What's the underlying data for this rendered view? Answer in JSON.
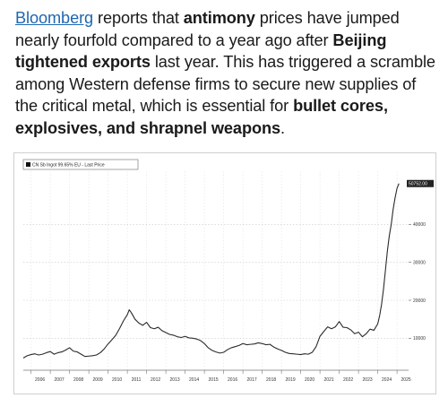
{
  "post": {
    "link": "Bloomberg",
    "t1": " reports that ",
    "b1": "antimony",
    "t2": " prices have jumped nearly fourfold compared to a year ago after ",
    "b2": "Beijing tightened exports",
    "t3": " last year. This has triggered a scramble among Western defense firms to secure new supplies of the critical metal, which is essential for ",
    "b3": "bullet cores, explosives, and shrapnel weapons",
    "t4": "."
  },
  "chart_data": {
    "type": "line",
    "legend": "CN Sb Ingot 99.65% EU - Last Price",
    "legend_position": "top-left",
    "last_price_label": "50752.00",
    "x_ticks": [
      "2006",
      "2007",
      "2008",
      "2009",
      "2010",
      "2011",
      "2012",
      "2013",
      "2014",
      "2015",
      "2016",
      "2017",
      "2018",
      "2019",
      "2020",
      "2021",
      "2022",
      "2023",
      "2024",
      "2025"
    ],
    "y_ticks": [
      10000,
      20000,
      30000,
      40000
    ],
    "y_tick_labels": [
      "10000",
      "20000",
      "30000",
      "40000"
    ],
    "xlim": [
      2005.6,
      2025.6
    ],
    "ylim": [
      3000,
      54000
    ],
    "grid": true,
    "line_color": "#2b2b2b",
    "series": [
      {
        "x": [
          2005.6,
          2005.8,
          2006.0,
          2006.2,
          2006.4,
          2006.6,
          2006.8,
          2007.0,
          2007.2,
          2007.4,
          2007.6,
          2007.8,
          2008.0,
          2008.2,
          2008.4,
          2008.6,
          2008.8,
          2009.0,
          2009.2,
          2009.4,
          2009.6,
          2009.8,
          2010.0,
          2010.2,
          2010.4,
          2010.6,
          2010.8,
          2011.0,
          2011.1,
          2011.2,
          2011.4,
          2011.6,
          2011.8,
          2012.0,
          2012.2,
          2012.4,
          2012.6,
          2012.8,
          2013.0,
          2013.2,
          2013.4,
          2013.6,
          2013.8,
          2014.0,
          2014.2,
          2014.4,
          2014.6,
          2014.8,
          2015.0,
          2015.2,
          2015.4,
          2015.6,
          2015.8,
          2016.0,
          2016.2,
          2016.4,
          2016.6,
          2016.8,
          2017.0,
          2017.2,
          2017.4,
          2017.6,
          2017.8,
          2018.0,
          2018.2,
          2018.4,
          2018.6,
          2018.8,
          2019.0,
          2019.2,
          2019.4,
          2019.6,
          2019.8,
          2020.0,
          2020.2,
          2020.4,
          2020.6,
          2020.8,
          2021.0,
          2021.2,
          2021.4,
          2021.6,
          2021.8,
          2022.0,
          2022.2,
          2022.4,
          2022.6,
          2022.8,
          2023.0,
          2023.2,
          2023.4,
          2023.6,
          2023.8,
          2024.0,
          2024.1,
          2024.2,
          2024.3,
          2024.4,
          2024.5,
          2024.6,
          2024.7,
          2024.8,
          2024.9,
          2025.0,
          2025.1
        ],
        "y": [
          4800,
          5400,
          5700,
          5900,
          5600,
          5800,
          6200,
          6500,
          5800,
          6200,
          6400,
          6900,
          7500,
          6600,
          6400,
          5800,
          5200,
          5300,
          5400,
          5600,
          6200,
          7200,
          8500,
          9600,
          10800,
          12600,
          14600,
          16200,
          17500,
          16800,
          15000,
          14000,
          13400,
          14200,
          12800,
          12500,
          12900,
          12000,
          11500,
          11000,
          10800,
          10400,
          10200,
          10500,
          10100,
          10000,
          9800,
          9400,
          8600,
          7500,
          6800,
          6400,
          6100,
          6300,
          7000,
          7500,
          7800,
          8100,
          8600,
          8300,
          8400,
          8500,
          8800,
          8600,
          8300,
          8400,
          7700,
          7200,
          6800,
          6300,
          6000,
          5900,
          5800,
          5700,
          5900,
          5800,
          6300,
          7800,
          10500,
          11800,
          13000,
          12500,
          13000,
          14400,
          12900,
          12800,
          12200,
          11200,
          11600,
          10400,
          11200,
          12400,
          12100,
          13800,
          16000,
          19000,
          23000,
          28000,
          33000,
          37000,
          40000,
          44000,
          47000,
          49500,
          50752
        ]
      }
    ]
  }
}
